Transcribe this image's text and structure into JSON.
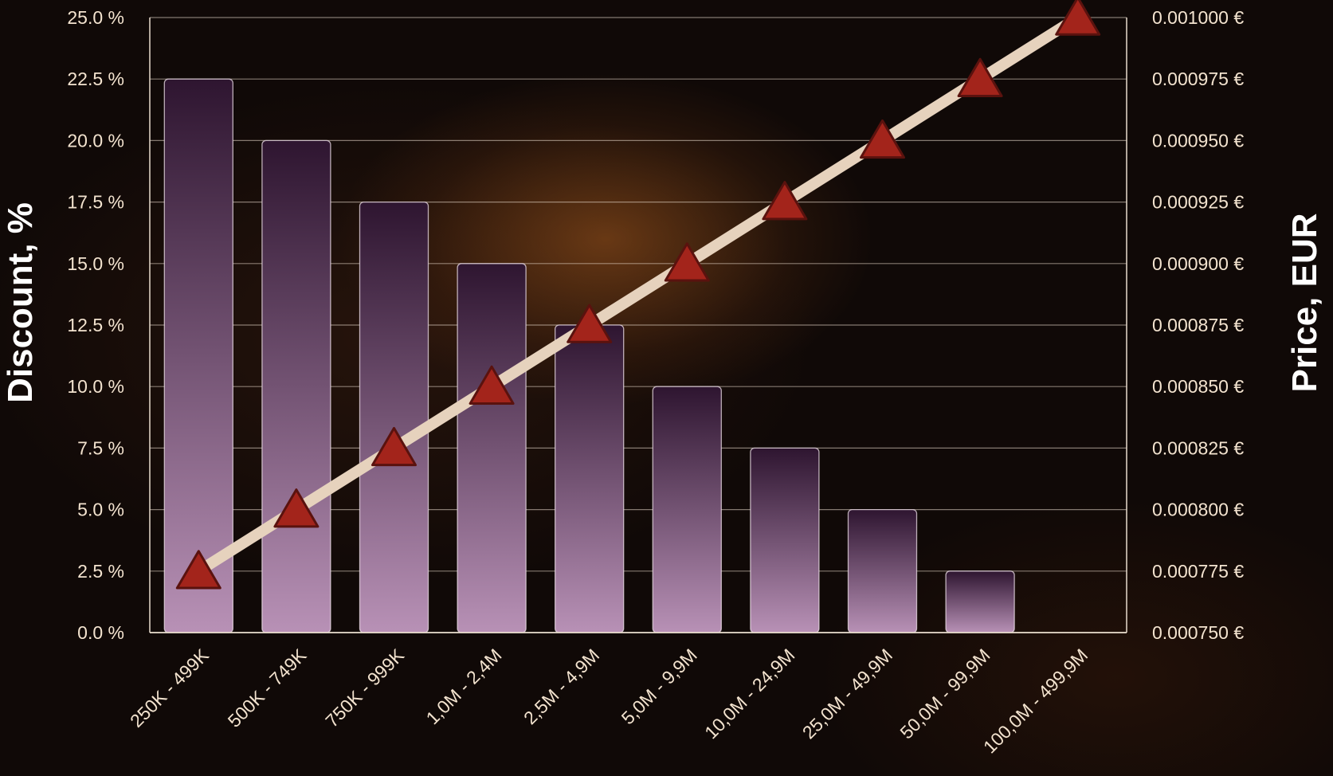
{
  "chart_data": {
    "type": "bar",
    "categories": [
      "250K - 499K",
      "500K - 749K",
      "750K - 999K",
      "1,0M - 2,4M",
      "2,5M - 4,9M",
      "5,0M - 9,9M",
      "10,0M - 24,9M",
      "25,0M - 49,9M",
      "50,0M - 99,9M",
      "100,0M - 499,9M"
    ],
    "series": [
      {
        "axis": "left",
        "type": "bar",
        "values": [
          22.5,
          20.0,
          17.5,
          15.0,
          12.5,
          10.0,
          7.5,
          5.0,
          2.5,
          0.0
        ]
      },
      {
        "axis": "right",
        "type": "line",
        "marker": "triangle",
        "values": [
          0.000775,
          0.0008,
          0.000825,
          0.00085,
          0.000875,
          0.0009,
          0.000925,
          0.00095,
          0.000975,
          0.001
        ]
      }
    ],
    "ylabel": "Discount, %",
    "y2label": "Price, EUR",
    "ylim": [
      0,
      25
    ],
    "y2lim": [
      0.00075,
      0.001
    ],
    "yticks": [
      "0.0 %",
      "2.5 %",
      "5.0 %",
      "7.5 %",
      "10.0 %",
      "12.5 %",
      "15.0 %",
      "17.5 %",
      "20.0 %",
      "22.5 %",
      "25.0 %"
    ],
    "y2ticks": [
      "0.000750 €",
      "0.000775 €",
      "0.000800 €",
      "0.000825 €",
      "0.000850 €",
      "0.000875 €",
      "0.000900 €",
      "0.000925 €",
      "0.000950 €",
      "0.000975 €",
      "0.001000 €"
    ],
    "grid": true,
    "colors": {
      "bar_top": "#2e1530",
      "bar_bottom": "#b891b6",
      "line": "#e6d2bd",
      "marker": "#a3241b",
      "marker_edge": "#5a120e",
      "text": "#f3e3cf"
    }
  }
}
